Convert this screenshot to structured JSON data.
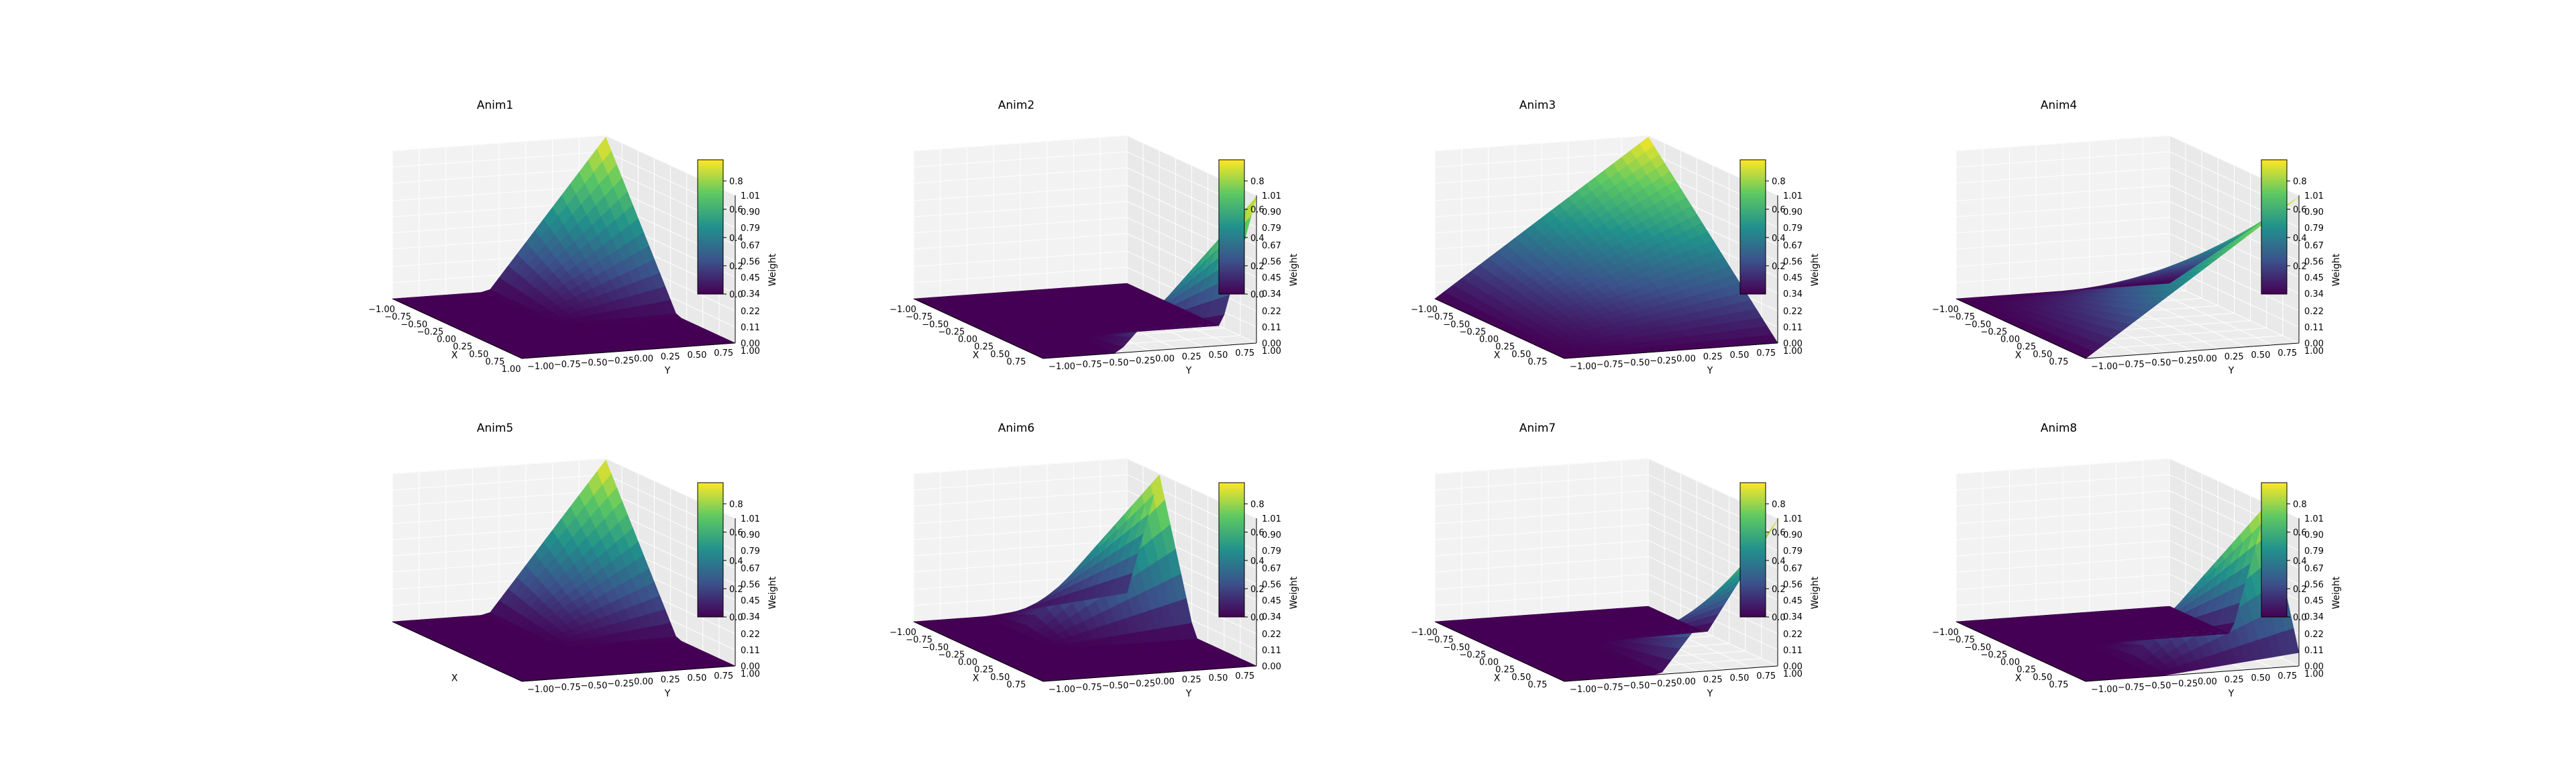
{
  "chart_data": [
    {
      "type": "surface",
      "title": "Anim1",
      "xlabel": "X",
      "ylabel": "Y",
      "zlabel": "Weight",
      "x_ticks": [
        "−1.00",
        "−0.75",
        "−0.50",
        "−0.25",
        "0.00",
        "0.25",
        "0.50",
        "0.75",
        "1.00"
      ],
      "y_ticks": [
        "−1.00",
        "−0.75",
        "−0.50",
        "−0.25",
        "0.00",
        "0.25",
        "0.50",
        "0.75",
        "1.00"
      ],
      "z_ticks": [
        "0.00",
        "0.11",
        "0.22",
        "0.34",
        "0.45",
        "0.56",
        "0.67",
        "0.79",
        "0.90",
        "1.01"
      ],
      "colorbar_ticks": [
        "0.0",
        "0.2",
        "0.4",
        "0.6",
        "0.8"
      ],
      "peak": [
        -1,
        1
      ],
      "support": "corner",
      "zlim": [
        0,
        1.01
      ],
      "colormap": "viridis"
    },
    {
      "type": "surface",
      "title": "Anim2",
      "xlabel": "X",
      "ylabel": "Y",
      "zlabel": "Weight",
      "x_ticks": [
        "−1.00",
        "−0.75",
        "−0.50",
        "−0.25",
        "0.00",
        "0.25",
        "0.50",
        "0.75"
      ],
      "y_ticks": [
        "−1.00",
        "−0.75",
        "−0.50",
        "−0.25",
        "0.00",
        "0.25",
        "0.50",
        "0.75",
        "1.00"
      ],
      "z_ticks": [
        "0.00",
        "0.11",
        "0.22",
        "0.34",
        "0.45",
        "0.56",
        "0.67",
        "0.79",
        "0.90",
        "1.01"
      ],
      "colorbar_ticks": [
        "0.0",
        "0.2",
        "0.4",
        "0.6",
        "0.8"
      ],
      "peak": [
        1,
        1
      ],
      "support": "ridge",
      "zlim": [
        0,
        1.01
      ],
      "colormap": "viridis"
    },
    {
      "type": "surface",
      "title": "Anim3",
      "xlabel": "X",
      "ylabel": "Y",
      "zlabel": "Weight",
      "x_ticks": [
        "−1.00",
        "−0.75",
        "−0.50",
        "−0.25",
        "0.00",
        "0.25",
        "0.50",
        "0.75"
      ],
      "y_ticks": [
        "−1.00",
        "−0.75",
        "−0.50",
        "−0.25",
        "0.00",
        "0.25",
        "0.50",
        "0.75",
        "1.00"
      ],
      "z_ticks": [
        "0.00",
        "0.11",
        "0.22",
        "0.34",
        "0.45",
        "0.56",
        "0.67",
        "0.79",
        "0.90",
        "1.01"
      ],
      "colorbar_ticks": [
        "0.2",
        "0.4",
        "0.6",
        "0.8"
      ],
      "peak": [
        -1,
        1
      ],
      "support": "full",
      "zlim": [
        0,
        1.01
      ],
      "colormap": "viridis"
    },
    {
      "type": "surface",
      "title": "Anim4",
      "xlabel": "X",
      "ylabel": "Y",
      "zlabel": "Weight",
      "x_ticks": [
        "−1.00",
        "−0.75",
        "−0.50",
        "−0.25",
        "0.00",
        "0.25",
        "0.50",
        "0.75"
      ],
      "y_ticks": [
        "−1.00",
        "−0.75",
        "−0.50",
        "−0.25",
        "0.00",
        "0.25",
        "0.50",
        "0.75",
        "1.00"
      ],
      "z_ticks": [
        "0.00",
        "0.11",
        "0.22",
        "0.34",
        "0.45",
        "0.56",
        "0.67",
        "0.79",
        "0.90",
        "1.01"
      ],
      "colorbar_ticks": [
        "0.2",
        "0.4",
        "0.6",
        "0.8"
      ],
      "peak": [
        1,
        1
      ],
      "support": "full",
      "zlim": [
        0,
        1.01
      ],
      "colormap": "viridis"
    },
    {
      "type": "surface",
      "title": "Anim5",
      "xlabel": "X",
      "ylabel": "Y",
      "zlabel": "Weight",
      "y_ticks": [
        "−1.00",
        "−0.75",
        "−0.50",
        "−0.25",
        "0.00",
        "0.25",
        "0.50",
        "0.75",
        "1.00"
      ],
      "z_ticks": [
        "0.00",
        "0.11",
        "0.22",
        "0.34",
        "0.45",
        "0.56",
        "0.67",
        "0.79",
        "0.90",
        "1.01"
      ],
      "colorbar_ticks": [
        "0.0",
        "0.2",
        "0.4",
        "0.6",
        "0.8"
      ],
      "peak": [
        -1,
        1
      ],
      "support": "corner",
      "zlim": [
        0,
        1.01
      ],
      "colormap": "viridis"
    },
    {
      "type": "surface",
      "title": "Anim6",
      "xlabel": "X",
      "ylabel": "Y",
      "zlabel": "Weight",
      "x_ticks": [
        "−1.00",
        "−0.75",
        "−0.50",
        "−0.25",
        "0.00",
        "0.25",
        "0.50",
        "0.75"
      ],
      "y_ticks": [
        "−1.00",
        "−0.75",
        "−0.50",
        "−0.25",
        "0.00",
        "0.25",
        "0.50",
        "0.75"
      ],
      "z_ticks": [
        "0.00",
        "0.11",
        "0.22",
        "0.34",
        "0.45",
        "0.56",
        "0.67",
        "0.79",
        "0.90",
        "1.01"
      ],
      "colorbar_ticks": [
        "0.0",
        "0.2",
        "0.4",
        "0.6",
        "0.8"
      ],
      "peak": [
        -0.5,
        1
      ],
      "support": "ridge",
      "zlim": [
        0,
        1.01
      ],
      "colormap": "viridis"
    },
    {
      "type": "surface",
      "title": "Anim7",
      "xlabel": "X",
      "ylabel": "Y",
      "zlabel": "Weight",
      "x_ticks": [
        "−1.00",
        "−0.75",
        "−0.50",
        "−0.25",
        "0.00",
        "0.25",
        "0.50",
        "0.75"
      ],
      "y_ticks": [
        "−1.00",
        "−0.75",
        "−0.50",
        "−0.25",
        "0.00",
        "0.25",
        "0.50",
        "0.75",
        "1.00"
      ],
      "z_ticks": [
        "0.00",
        "0.11",
        "0.22",
        "0.34",
        "0.45",
        "0.56",
        "0.67",
        "0.79",
        "0.90",
        "1.01"
      ],
      "colorbar_ticks": [
        "0.0",
        "0.2",
        "0.4",
        "0.6",
        "0.8"
      ],
      "peak": [
        1,
        1
      ],
      "support": "corner",
      "zlim": [
        0,
        1.01
      ],
      "colormap": "viridis"
    },
    {
      "type": "surface",
      "title": "Anim8",
      "xlabel": "X",
      "ylabel": "Y",
      "zlabel": "Weight",
      "x_ticks": [
        "−1.00",
        "−0.75",
        "−0.50",
        "−0.25",
        "0.00",
        "0.25",
        "0.50",
        "0.75"
      ],
      "y_ticks": [
        "−1.00",
        "−0.75",
        "−0.50",
        "−0.25",
        "0.00",
        "0.25",
        "0.50",
        "0.75",
        "1.00"
      ],
      "z_ticks": [
        "0.00",
        "0.11",
        "0.22",
        "0.34",
        "0.45",
        "0.56",
        "0.67",
        "0.79",
        "0.90",
        "1.01"
      ],
      "colorbar_ticks": [
        "0.0",
        "0.2",
        "0.4",
        "0.6",
        "0.8"
      ],
      "peak": [
        0.5,
        1
      ],
      "support": "ridge",
      "zlim": [
        0,
        1.01
      ],
      "colormap": "viridis"
    }
  ]
}
